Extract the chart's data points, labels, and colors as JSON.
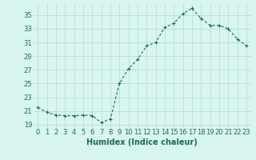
{
  "x": [
    0,
    1,
    2,
    3,
    4,
    5,
    6,
    7,
    8,
    9,
    10,
    11,
    12,
    13,
    14,
    15,
    16,
    17,
    18,
    19,
    20,
    21,
    22,
    23
  ],
  "y": [
    21.5,
    20.8,
    20.4,
    20.3,
    20.3,
    20.4,
    20.3,
    19.3,
    19.8,
    25.0,
    27.2,
    28.5,
    30.5,
    31.0,
    33.2,
    33.8,
    35.2,
    36.0,
    34.5,
    33.5,
    33.5,
    33.0,
    31.5,
    30.5
  ],
  "xlim": [
    -0.5,
    23.5
  ],
  "ylim": [
    18.5,
    36.5
  ],
  "yticks": [
    19,
    21,
    23,
    25,
    27,
    29,
    31,
    33,
    35
  ],
  "xticks": [
    0,
    1,
    2,
    3,
    4,
    5,
    6,
    7,
    8,
    9,
    10,
    11,
    12,
    13,
    14,
    15,
    16,
    17,
    18,
    19,
    20,
    21,
    22,
    23
  ],
  "xlabel": "Humidex (Indice chaleur)",
  "line_color": "#1a6b5a",
  "marker": "+",
  "bg_color": "#d8f5f0",
  "grid_color": "#b8ddd7",
  "tick_label_color": "#1a6b5a",
  "xlabel_color": "#1a6b5a",
  "xlabel_fontsize": 7.0,
  "tick_fontsize": 6.0
}
